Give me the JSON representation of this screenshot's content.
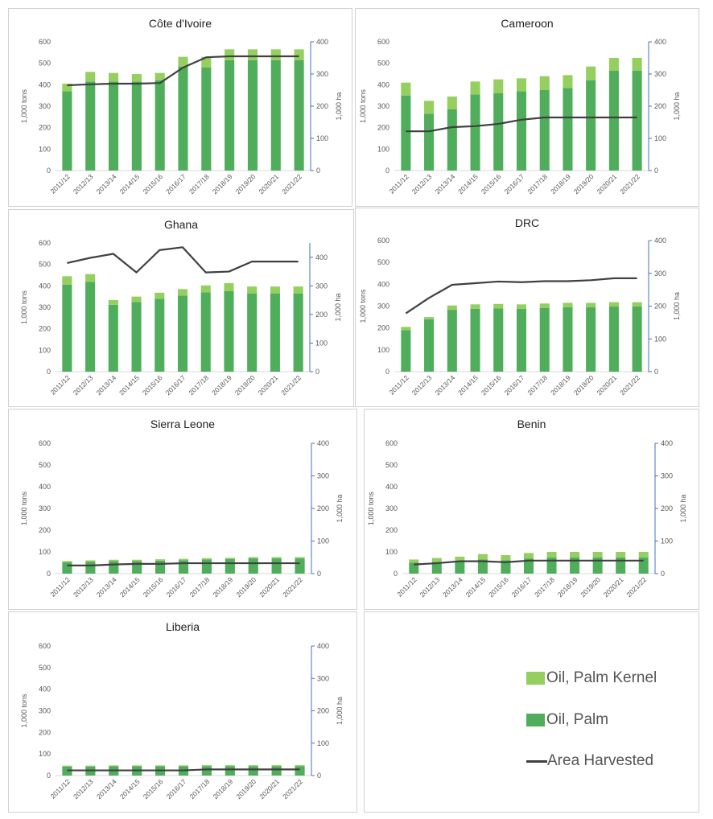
{
  "colors": {
    "kernel": "#94cf60",
    "palm": "#4fad5b",
    "area": "#404040",
    "axis": "#d9d9d9",
    "right_axis": "#4472c4",
    "text": "#595959"
  },
  "legend": {
    "kernel": "Oil, Palm Kernel",
    "palm": "Oil, Palm",
    "area": "Area Harvested"
  },
  "chart_data": [
    {
      "type": "bar",
      "title": "Côte d'Ivoire",
      "categories": [
        "2011/12",
        "2012/13",
        "2013/14",
        "2014/15",
        "2015/16",
        "2016/17",
        "2017/18",
        "2018/19",
        "2019/20",
        "2020/21",
        "2021/22"
      ],
      "series": [
        {
          "name": "Oil, Palm",
          "values": [
            370,
            415,
            415,
            415,
            420,
            485,
            480,
            515,
            515,
            515,
            515
          ]
        },
        {
          "name": "Oil, Palm Kernel",
          "values": [
            35,
            45,
            40,
            35,
            35,
            45,
            50,
            50,
            50,
            50,
            50
          ]
        },
        {
          "name": "Area Harvested",
          "axis": "right",
          "values": [
            265,
            268,
            270,
            270,
            272,
            320,
            352,
            355,
            355,
            355,
            355
          ]
        }
      ],
      "ylabel": "1,000 tons",
      "y2label": "1,000 ha",
      "ylim": [
        0,
        600
      ],
      "y2lim": [
        0,
        400
      ],
      "yticks": [
        "0",
        "100",
        "200",
        "300",
        "400",
        "500",
        "600"
      ],
      "y2ticks": [
        "0",
        "100",
        "200",
        "300",
        "400"
      ]
    },
    {
      "type": "bar",
      "title": "Cameroon",
      "categories": [
        "2011/12",
        "2012/13",
        "2013/14",
        "2014/15",
        "2015/16",
        "2016/17",
        "2017/18",
        "2018/19",
        "2019/20",
        "2020/21",
        "2021/22"
      ],
      "series": [
        {
          "name": "Oil, Palm",
          "values": [
            350,
            265,
            285,
            355,
            360,
            370,
            375,
            385,
            420,
            465,
            465
          ]
        },
        {
          "name": "Oil, Palm Kernel",
          "values": [
            60,
            60,
            60,
            60,
            65,
            60,
            65,
            60,
            65,
            60,
            60
          ]
        },
        {
          "name": "Area Harvested",
          "axis": "right",
          "values": [
            122,
            122,
            135,
            138,
            145,
            158,
            165,
            165,
            165,
            165,
            165
          ]
        }
      ],
      "ylabel": "1,000 tons",
      "y2label": "1,000 ha",
      "ylim": [
        0,
        600
      ],
      "y2lim": [
        0,
        400
      ],
      "yticks": [
        "0",
        "100",
        "200",
        "300",
        "400",
        "500",
        "600"
      ],
      "y2ticks": [
        "0",
        "100",
        "200",
        "300",
        "400"
      ]
    },
    {
      "type": "bar",
      "title": "Ghana",
      "categories": [
        "2011/12",
        "2012/13",
        "2013/14",
        "2014/15",
        "2015/16",
        "2016/17",
        "2017/18",
        "2018/19",
        "2019/20",
        "2020/21",
        "2021/22"
      ],
      "series": [
        {
          "name": "Oil, Palm",
          "values": [
            405,
            418,
            312,
            325,
            340,
            355,
            370,
            375,
            365,
            365,
            365
          ]
        },
        {
          "name": "Oil, Palm Kernel",
          "values": [
            40,
            37,
            22,
            25,
            28,
            30,
            32,
            38,
            32,
            32,
            32
          ]
        },
        {
          "name": "Area Harvested",
          "axis": "right",
          "values": [
            380,
            398,
            412,
            347,
            425,
            435,
            347,
            350,
            385,
            385,
            385
          ]
        }
      ],
      "ylabel": "1,000 tons",
      "y2label": "1,000 ha",
      "ylim": [
        0,
        600
      ],
      "y2lim": [
        0,
        450
      ],
      "yticks": [
        "0",
        "100",
        "200",
        "300",
        "400",
        "500",
        "600"
      ],
      "y2ticks": [
        "0",
        "100",
        "200",
        "300",
        "400"
      ]
    },
    {
      "type": "bar",
      "title": "DRC",
      "categories": [
        "2011/12",
        "2012/13",
        "2013/14",
        "2014/15",
        "2015/16",
        "2016/17",
        "2017/18",
        "2018/19",
        "2019/20",
        "2020/21",
        "2021/22"
      ],
      "series": [
        {
          "name": "Oil, Palm",
          "values": [
            190,
            240,
            283,
            288,
            290,
            288,
            292,
            295,
            295,
            298,
            298
          ]
        },
        {
          "name": "Oil, Palm Kernel",
          "values": [
            15,
            10,
            20,
            20,
            20,
            20,
            20,
            20,
            20,
            20,
            20
          ]
        },
        {
          "name": "Area Harvested",
          "axis": "right",
          "values": [
            178,
            225,
            265,
            270,
            275,
            273,
            276,
            276,
            279,
            285,
            285
          ]
        }
      ],
      "ylabel": "1,000 tons",
      "y2label": "1,000 ha",
      "ylim": [
        0,
        600
      ],
      "y2lim": [
        0,
        400
      ],
      "yticks": [
        "0",
        "100",
        "200",
        "300",
        "400",
        "500",
        "600"
      ],
      "y2ticks": [
        "0",
        "100",
        "200",
        "300",
        "400"
      ]
    },
    {
      "type": "bar",
      "title": "Sierra Leone",
      "categories": [
        "2011/12",
        "2012/13",
        "2013/14",
        "2014/15",
        "2015/16",
        "2016/17",
        "2017/18",
        "2018/19",
        "2019/20",
        "2020/21",
        "2021/22"
      ],
      "series": [
        {
          "name": "Oil, Palm",
          "values": [
            52,
            55,
            58,
            58,
            60,
            62,
            65,
            67,
            70,
            70,
            70
          ]
        },
        {
          "name": "Oil, Palm Kernel",
          "values": [
            6,
            6,
            6,
            6,
            6,
            6,
            6,
            6,
            6,
            6,
            6
          ]
        },
        {
          "name": "Area Harvested",
          "axis": "right",
          "values": [
            25,
            25,
            28,
            30,
            30,
            32,
            32,
            32,
            32,
            32,
            32
          ]
        }
      ],
      "ylabel": "1,000 tons",
      "y2label": "1,000 ha",
      "ylim": [
        0,
        600
      ],
      "y2lim": [
        0,
        400
      ],
      "yticks": [
        "0",
        "100",
        "200",
        "300",
        "400",
        "500",
        "600"
      ],
      "y2ticks": [
        "0",
        "100",
        "200",
        "300",
        "400"
      ]
    },
    {
      "type": "bar",
      "title": "Benin",
      "categories": [
        "2011/12",
        "2012/13",
        "2013/14",
        "2014/15",
        "2015/16",
        "2016/17",
        "2017/18",
        "2018/19",
        "2019/20",
        "2020/21",
        "2021/22"
      ],
      "series": [
        {
          "name": "Oil, Palm",
          "values": [
            50,
            55,
            60,
            65,
            62,
            70,
            75,
            75,
            75,
            75,
            75
          ]
        },
        {
          "name": "Oil, Palm Kernel",
          "values": [
            15,
            17,
            18,
            25,
            23,
            25,
            25,
            25,
            25,
            25,
            25
          ]
        },
        {
          "name": "Area Harvested",
          "axis": "right",
          "values": [
            28,
            32,
            38,
            38,
            35,
            40,
            40,
            40,
            40,
            40,
            40
          ]
        }
      ],
      "ylabel": "1,000 tons",
      "y2label": "1,000 ha",
      "ylim": [
        0,
        600
      ],
      "y2lim": [
        0,
        400
      ],
      "yticks": [
        "0",
        "100",
        "200",
        "300",
        "400",
        "500",
        "600"
      ],
      "y2ticks": [
        "0",
        "100",
        "200",
        "300",
        "400"
      ]
    },
    {
      "type": "bar",
      "title": "Liberia",
      "categories": [
        "2011/12",
        "2012/13",
        "2013/14",
        "2014/15",
        "2015/16",
        "2016/17",
        "2017/18",
        "2018/19",
        "2019/20",
        "2020/21",
        "2021/22"
      ],
      "series": [
        {
          "name": "Oil, Palm",
          "values": [
            42,
            42,
            43,
            43,
            43,
            43,
            44,
            44,
            44,
            44,
            44
          ]
        },
        {
          "name": "Oil, Palm Kernel",
          "values": [
            4,
            4,
            4,
            4,
            4,
            4,
            4,
            4,
            4,
            4,
            4
          ]
        },
        {
          "name": "Area Harvested",
          "axis": "right",
          "values": [
            16,
            16,
            16,
            16,
            16,
            16,
            19,
            19,
            19,
            19,
            19
          ]
        }
      ],
      "ylabel": "1,000 tons",
      "y2label": "1,000 ha",
      "ylim": [
        0,
        600
      ],
      "y2lim": [
        0,
        400
      ],
      "yticks": [
        "0",
        "100",
        "200",
        "300",
        "400",
        "500",
        "600"
      ],
      "y2ticks": [
        "0",
        "100",
        "200",
        "300",
        "400"
      ]
    }
  ]
}
